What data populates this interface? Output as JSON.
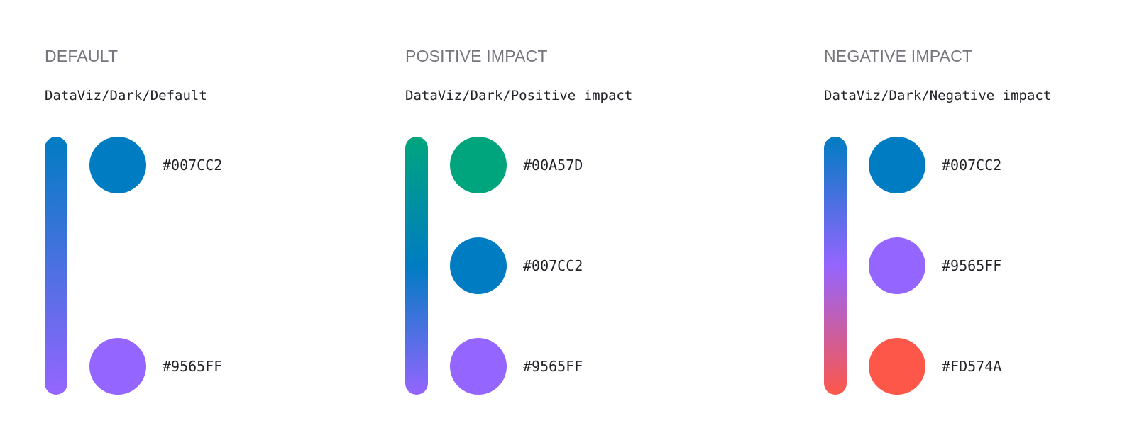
{
  "groups": [
    {
      "title": "DEFAULT",
      "token": "DataViz/Dark/Default",
      "gradient": [
        "#007CC2",
        "#9565FF"
      ],
      "swatches": [
        {
          "hex": "#007CC2",
          "color": "#007CC2"
        },
        {
          "hex": "#9565FF",
          "color": "#9565FF"
        }
      ]
    },
    {
      "title": "POSITIVE IMPACT",
      "token": "DataViz/Dark/Positive impact",
      "gradient": [
        "#00A57D",
        "#007CC2",
        "#9565FF"
      ],
      "swatches": [
        {
          "hex": "#00A57D",
          "color": "#00A57D"
        },
        {
          "hex": "#007CC2",
          "color": "#007CC2"
        },
        {
          "hex": "#9565FF",
          "color": "#9565FF"
        }
      ]
    },
    {
      "title": "NEGATIVE IMPACT",
      "token": "DataViz/Dark/Negative impact",
      "gradient": [
        "#007CC2",
        "#9565FF",
        "#FD574A"
      ],
      "swatches": [
        {
          "hex": "#007CC2",
          "color": "#007CC2"
        },
        {
          "hex": "#9565FF",
          "color": "#9565FF"
        },
        {
          "hex": "#FD574A",
          "color": "#FD574A"
        }
      ]
    }
  ]
}
